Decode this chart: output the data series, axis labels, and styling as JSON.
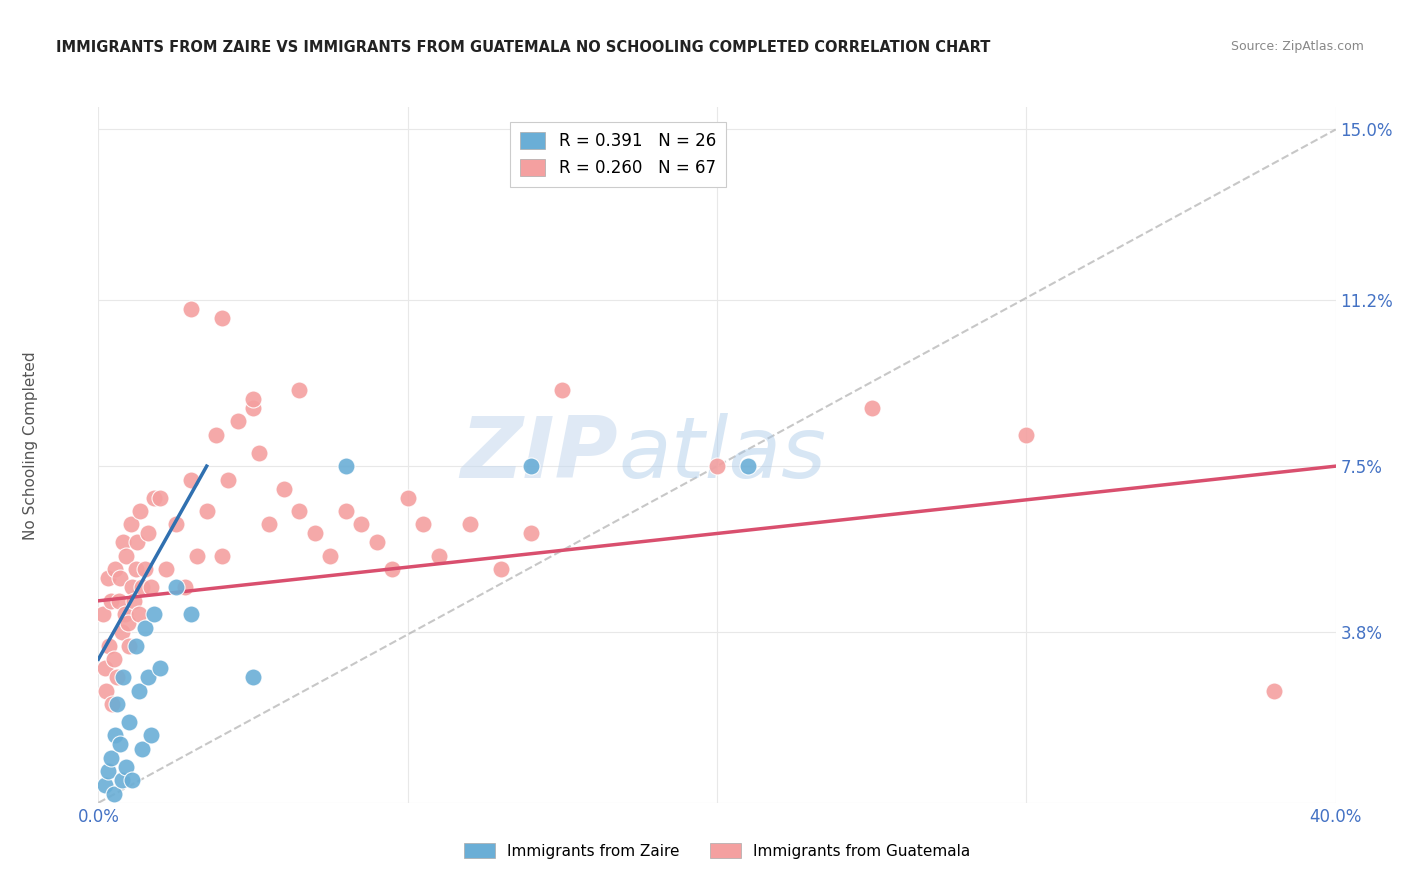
{
  "title": "IMMIGRANTS FROM ZAIRE VS IMMIGRANTS FROM GUATEMALA NO SCHOOLING COMPLETED CORRELATION CHART",
  "source": "Source: ZipAtlas.com",
  "ylabel": "No Schooling Completed",
  "xlim": [
    0.0,
    40.0
  ],
  "ylim": [
    0.0,
    15.5
  ],
  "ytick_vals": [
    0.0,
    3.8,
    7.5,
    11.2,
    15.0
  ],
  "ytick_labels": [
    "",
    "3.8%",
    "7.5%",
    "11.2%",
    "15.0%"
  ],
  "xtick_vals": [
    0.0,
    10.0,
    20.0,
    30.0,
    40.0
  ],
  "xtick_labels": [
    "0.0%",
    "",
    "",
    "",
    "40.0%"
  ],
  "zaire_color": "#6aaed6",
  "zaire_line_color": "#3070b0",
  "guatemala_color": "#f4a0a0",
  "guatemala_line_color": "#d94f6e",
  "ref_line_color": "#b0b0b0",
  "zaire_R": 0.391,
  "zaire_N": 26,
  "guatemala_R": 0.26,
  "guatemala_N": 67,
  "watermark_zip": "ZIP",
  "watermark_atlas": "atlas",
  "axis_tick_color": "#4472c4",
  "title_color": "#222222",
  "source_color": "#888888",
  "grid_color": "#e8e8e8",
  "ylabel_color": "#555555",
  "zaire_points": [
    [
      0.2,
      0.4
    ],
    [
      0.3,
      0.7
    ],
    [
      0.4,
      1.0
    ],
    [
      0.5,
      0.2
    ],
    [
      0.55,
      1.5
    ],
    [
      0.6,
      2.2
    ],
    [
      0.7,
      1.3
    ],
    [
      0.75,
      0.5
    ],
    [
      0.8,
      2.8
    ],
    [
      0.9,
      0.8
    ],
    [
      1.0,
      1.8
    ],
    [
      1.1,
      0.5
    ],
    [
      1.2,
      3.5
    ],
    [
      1.3,
      2.5
    ],
    [
      1.4,
      1.2
    ],
    [
      1.5,
      3.9
    ],
    [
      1.6,
      2.8
    ],
    [
      1.7,
      1.5
    ],
    [
      1.8,
      4.2
    ],
    [
      2.0,
      3.0
    ],
    [
      2.5,
      4.8
    ],
    [
      3.0,
      4.2
    ],
    [
      5.0,
      2.8
    ],
    [
      8.0,
      7.5
    ],
    [
      14.0,
      7.5
    ],
    [
      21.0,
      7.5
    ]
  ],
  "guatemala_points": [
    [
      0.15,
      4.2
    ],
    [
      0.2,
      3.0
    ],
    [
      0.25,
      2.5
    ],
    [
      0.3,
      5.0
    ],
    [
      0.35,
      3.5
    ],
    [
      0.4,
      4.5
    ],
    [
      0.45,
      2.2
    ],
    [
      0.5,
      3.2
    ],
    [
      0.55,
      5.2
    ],
    [
      0.6,
      2.8
    ],
    [
      0.65,
      4.5
    ],
    [
      0.7,
      5.0
    ],
    [
      0.75,
      3.8
    ],
    [
      0.8,
      5.8
    ],
    [
      0.85,
      4.2
    ],
    [
      0.9,
      5.5
    ],
    [
      0.95,
      4.0
    ],
    [
      1.0,
      3.5
    ],
    [
      1.05,
      6.2
    ],
    [
      1.1,
      4.8
    ],
    [
      1.15,
      4.5
    ],
    [
      1.2,
      5.2
    ],
    [
      1.25,
      5.8
    ],
    [
      1.3,
      4.2
    ],
    [
      1.35,
      6.5
    ],
    [
      1.4,
      4.8
    ],
    [
      1.5,
      5.2
    ],
    [
      1.6,
      6.0
    ],
    [
      1.7,
      4.8
    ],
    [
      1.8,
      6.8
    ],
    [
      2.0,
      6.8
    ],
    [
      2.2,
      5.2
    ],
    [
      2.5,
      6.2
    ],
    [
      2.8,
      4.8
    ],
    [
      3.0,
      7.2
    ],
    [
      3.2,
      5.5
    ],
    [
      3.5,
      6.5
    ],
    [
      3.8,
      8.2
    ],
    [
      4.0,
      5.5
    ],
    [
      4.2,
      7.2
    ],
    [
      4.5,
      8.5
    ],
    [
      5.0,
      8.8
    ],
    [
      5.2,
      7.8
    ],
    [
      5.5,
      6.2
    ],
    [
      6.0,
      7.0
    ],
    [
      6.5,
      6.5
    ],
    [
      7.0,
      6.0
    ],
    [
      7.5,
      5.5
    ],
    [
      8.0,
      6.5
    ],
    [
      8.5,
      6.2
    ],
    [
      9.0,
      5.8
    ],
    [
      9.5,
      5.2
    ],
    [
      10.0,
      6.8
    ],
    [
      10.5,
      6.2
    ],
    [
      11.0,
      5.5
    ],
    [
      12.0,
      6.2
    ],
    [
      13.0,
      5.2
    ],
    [
      14.0,
      6.0
    ],
    [
      15.0,
      9.2
    ],
    [
      25.0,
      8.8
    ],
    [
      38.0,
      2.5
    ],
    [
      20.0,
      7.5
    ],
    [
      30.0,
      8.2
    ],
    [
      3.0,
      11.0
    ],
    [
      4.0,
      10.8
    ],
    [
      5.0,
      9.0
    ],
    [
      6.5,
      9.2
    ]
  ]
}
